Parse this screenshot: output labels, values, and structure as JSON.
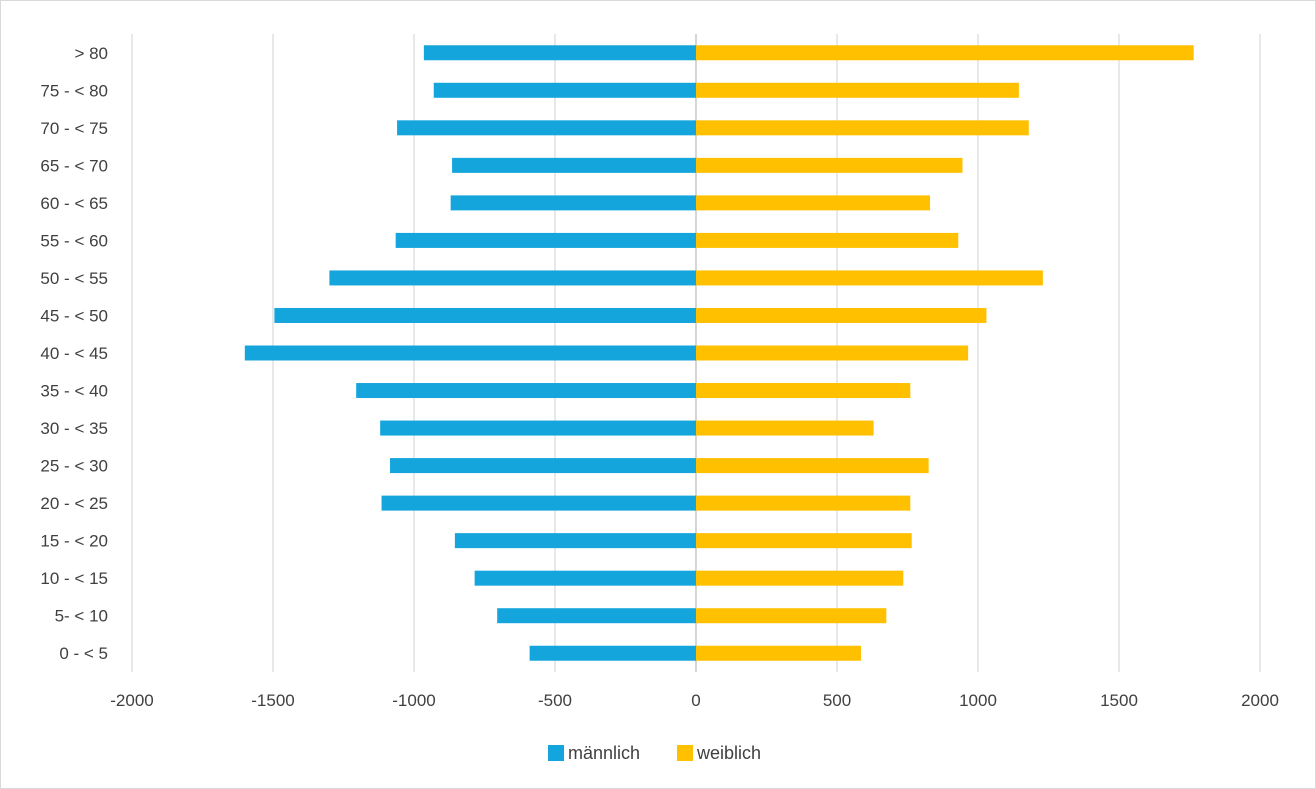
{
  "chart_data": {
    "type": "bar",
    "orientation": "horizontal",
    "title": "",
    "xlabel": "",
    "ylabel": "",
    "xlim": [
      -2000,
      2000
    ],
    "x_ticks": [
      -2000,
      -1500,
      -1000,
      -500,
      0,
      500,
      1000,
      1500,
      2000
    ],
    "x_tick_labels": [
      "-2000",
      "-1500",
      "-1000",
      "-500",
      "0",
      "500",
      "1000",
      "1500",
      "2000"
    ],
    "grid": true,
    "legend_position": "bottom",
    "categories": [
      "0 - < 5",
      "5- < 10",
      "10 - < 15",
      "15 - < 20",
      "20 - < 25",
      "25 - < 30",
      "30 - < 35",
      "35 - < 40",
      "40 - < 45",
      "45 - < 50",
      "50 - < 55",
      "55 - < 60",
      "60 - < 65",
      "65 - < 70",
      "70 - < 75",
      "75 - < 80",
      "> 80"
    ],
    "series": [
      {
        "name": "männlich",
        "color": "#14a5dd",
        "values": [
          -590,
          -705,
          -785,
          -855,
          -1115,
          -1085,
          -1120,
          -1205,
          -1600,
          -1495,
          -1300,
          -1065,
          -870,
          -865,
          -1060,
          -930,
          -965
        ]
      },
      {
        "name": "weiblich",
        "color": "#ffc000",
        "values": [
          585,
          675,
          735,
          765,
          760,
          825,
          630,
          760,
          965,
          1030,
          1230,
          930,
          830,
          945,
          1180,
          1145,
          1765
        ]
      }
    ]
  }
}
